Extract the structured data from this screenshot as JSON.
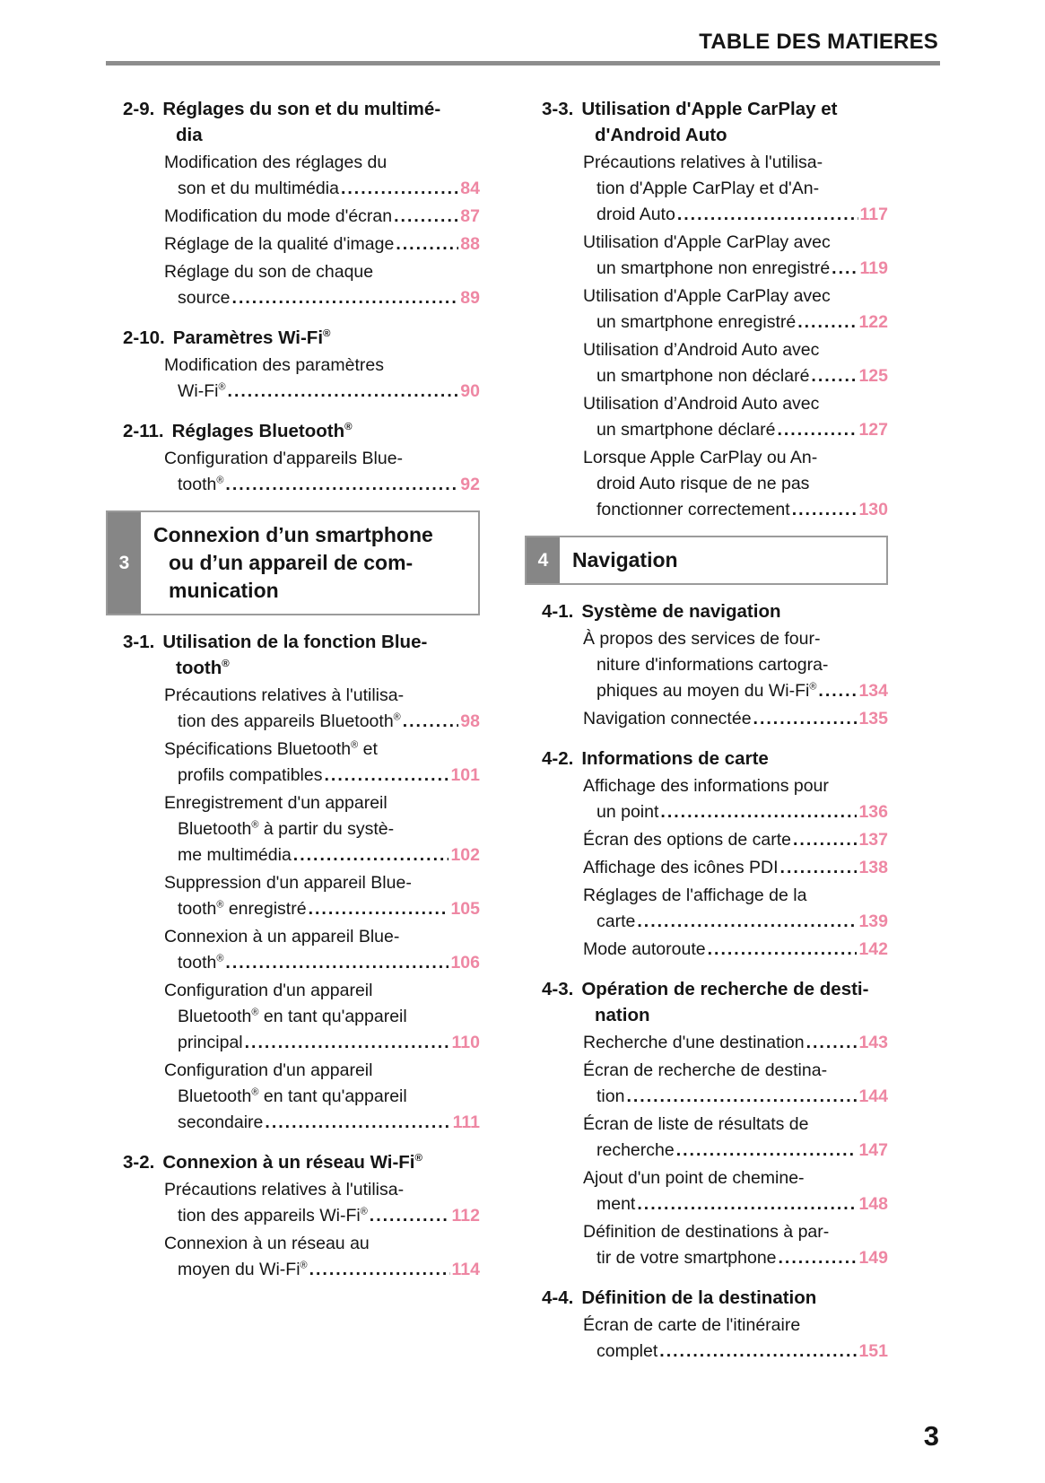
{
  "header": {
    "title": "TABLE DES MATIERES"
  },
  "footer": {
    "page_number": "3"
  },
  "colors": {
    "accent_pink": "#ee87a3",
    "tab_gray": "#868686",
    "rule_gray": "#8d8d8d"
  },
  "toc": {
    "left": [
      {
        "kind": "section",
        "num": "2-9.",
        "title": [
          "Réglages du son et du multimé-",
          "dia"
        ]
      },
      {
        "kind": "entry",
        "lines": [
          "Modification des réglages du",
          "son et du multimédia"
        ],
        "page": "84"
      },
      {
        "kind": "entry",
        "lines": [
          "Modification du mode d'écran"
        ],
        "page": "87"
      },
      {
        "kind": "entry",
        "lines": [
          "Réglage de la qualité d'image"
        ],
        "page": "88"
      },
      {
        "kind": "entry",
        "lines": [
          "Réglage du son de chaque",
          "source"
        ],
        "page": "89"
      },
      {
        "kind": "section",
        "num": "2-10.",
        "title": [
          "Paramètres Wi-Fi®"
        ]
      },
      {
        "kind": "entry",
        "lines": [
          "Modification des paramètres",
          "Wi-Fi®"
        ],
        "page": "90"
      },
      {
        "kind": "section",
        "num": "2-11.",
        "title": [
          "Réglages Bluetooth®"
        ]
      },
      {
        "kind": "entry",
        "lines": [
          "Configuration d'appareils Blue-",
          "tooth®"
        ],
        "page": "92"
      },
      {
        "kind": "chapter",
        "num": "3",
        "title": [
          "Connexion d’un smartphone",
          "ou d’un appareil de com-",
          "munication"
        ]
      },
      {
        "kind": "section",
        "num": "3-1.",
        "title": [
          "Utilisation de la fonction Blue-",
          "tooth®"
        ]
      },
      {
        "kind": "entry",
        "lines": [
          "Précautions relatives à l'utilisa-",
          "tion des appareils Bluetooth®"
        ],
        "page": "98"
      },
      {
        "kind": "entry",
        "lines": [
          "Spécifications Bluetooth® et",
          "profils compatibles"
        ],
        "page": "101"
      },
      {
        "kind": "entry",
        "lines": [
          "Enregistrement d'un appareil",
          "Bluetooth® à partir du systè-",
          "me multimédia"
        ],
        "page": "102"
      },
      {
        "kind": "entry",
        "lines": [
          "Suppression d'un appareil Blue-",
          "tooth® enregistré"
        ],
        "page": "105"
      },
      {
        "kind": "entry",
        "lines": [
          "Connexion à un appareil Blue-",
          "tooth®"
        ],
        "page": "106"
      },
      {
        "kind": "entry",
        "lines": [
          "Configuration d'un appareil",
          "Bluetooth® en tant qu'appareil",
          "principal"
        ],
        "page": "110"
      },
      {
        "kind": "entry",
        "lines": [
          "Configuration d'un appareil",
          "Bluetooth® en tant qu'appareil",
          "secondaire"
        ],
        "page": "111"
      },
      {
        "kind": "section",
        "num": "3-2.",
        "title": [
          "Connexion à un réseau Wi-Fi®"
        ]
      },
      {
        "kind": "entry",
        "lines": [
          "Précautions relatives à l'utilisa-",
          "tion des appareils Wi-Fi®"
        ],
        "page": "112"
      },
      {
        "kind": "entry",
        "lines": [
          "Connexion à un réseau au",
          "moyen du Wi-Fi®"
        ],
        "page": "114"
      }
    ],
    "right": [
      {
        "kind": "section",
        "num": "3-3.",
        "title": [
          "Utilisation d'Apple CarPlay et",
          "d'Android Auto"
        ]
      },
      {
        "kind": "entry",
        "lines": [
          "Précautions relatives à l'utilisa-",
          "tion d'Apple CarPlay et d'An-",
          "droid Auto"
        ],
        "page": "117"
      },
      {
        "kind": "entry",
        "lines": [
          "Utilisation d'Apple CarPlay avec",
          "un smartphone non enregistré"
        ],
        "page": "119"
      },
      {
        "kind": "entry",
        "lines": [
          "Utilisation d'Apple CarPlay avec",
          "un smartphone enregistré"
        ],
        "page": "122"
      },
      {
        "kind": "entry",
        "lines": [
          "Utilisation d’Android Auto avec",
          "un smartphone non déclaré"
        ],
        "page": "125"
      },
      {
        "kind": "entry",
        "lines": [
          "Utilisation d’Android Auto avec",
          "un smartphone déclaré"
        ],
        "page": "127"
      },
      {
        "kind": "entry",
        "lines": [
          "Lorsque Apple CarPlay ou An-",
          "droid Auto risque de ne pas",
          "fonctionner correctement"
        ],
        "page": "130"
      },
      {
        "kind": "chapter",
        "num": "4",
        "title": [
          "Navigation"
        ]
      },
      {
        "kind": "section",
        "num": "4-1.",
        "title": [
          "Système de navigation"
        ]
      },
      {
        "kind": "entry",
        "lines": [
          "À propos des services de four-",
          "niture d'informations cartogra-",
          "phiques au moyen du Wi-Fi®"
        ],
        "page": "134"
      },
      {
        "kind": "entry",
        "lines": [
          "Navigation connectée"
        ],
        "page": "135"
      },
      {
        "kind": "section",
        "num": "4-2.",
        "title": [
          "Informations de carte"
        ]
      },
      {
        "kind": "entry",
        "lines": [
          "Affichage des informations pour",
          "un point"
        ],
        "page": "136"
      },
      {
        "kind": "entry",
        "lines": [
          "Écran des options de carte"
        ],
        "page": "137"
      },
      {
        "kind": "entry",
        "lines": [
          "Affichage des icônes PDI"
        ],
        "page": "138"
      },
      {
        "kind": "entry",
        "lines": [
          "Réglages de l'affichage de la",
          "carte"
        ],
        "page": "139"
      },
      {
        "kind": "entry",
        "lines": [
          "Mode autoroute"
        ],
        "page": "142"
      },
      {
        "kind": "section",
        "num": "4-3.",
        "title": [
          "Opération de recherche de desti-",
          "nation"
        ]
      },
      {
        "kind": "entry",
        "lines": [
          "Recherche d'une destination"
        ],
        "page": "143"
      },
      {
        "kind": "entry",
        "lines": [
          "Écran de recherche de destina-",
          "tion"
        ],
        "page": "144"
      },
      {
        "kind": "entry",
        "lines": [
          "Écran de liste de résultats de",
          "recherche"
        ],
        "page": "147"
      },
      {
        "kind": "entry",
        "lines": [
          "Ajout d'un point de chemine-",
          "ment"
        ],
        "page": "148"
      },
      {
        "kind": "entry",
        "lines": [
          "Définition de destinations à par-",
          "tir de votre smartphone"
        ],
        "page": "149"
      },
      {
        "kind": "section",
        "num": "4-4.",
        "title": [
          "Définition de la destination"
        ]
      },
      {
        "kind": "entry",
        "lines": [
          "Écran de carte de l'itinéraire",
          "complet"
        ],
        "page": "151"
      }
    ]
  }
}
